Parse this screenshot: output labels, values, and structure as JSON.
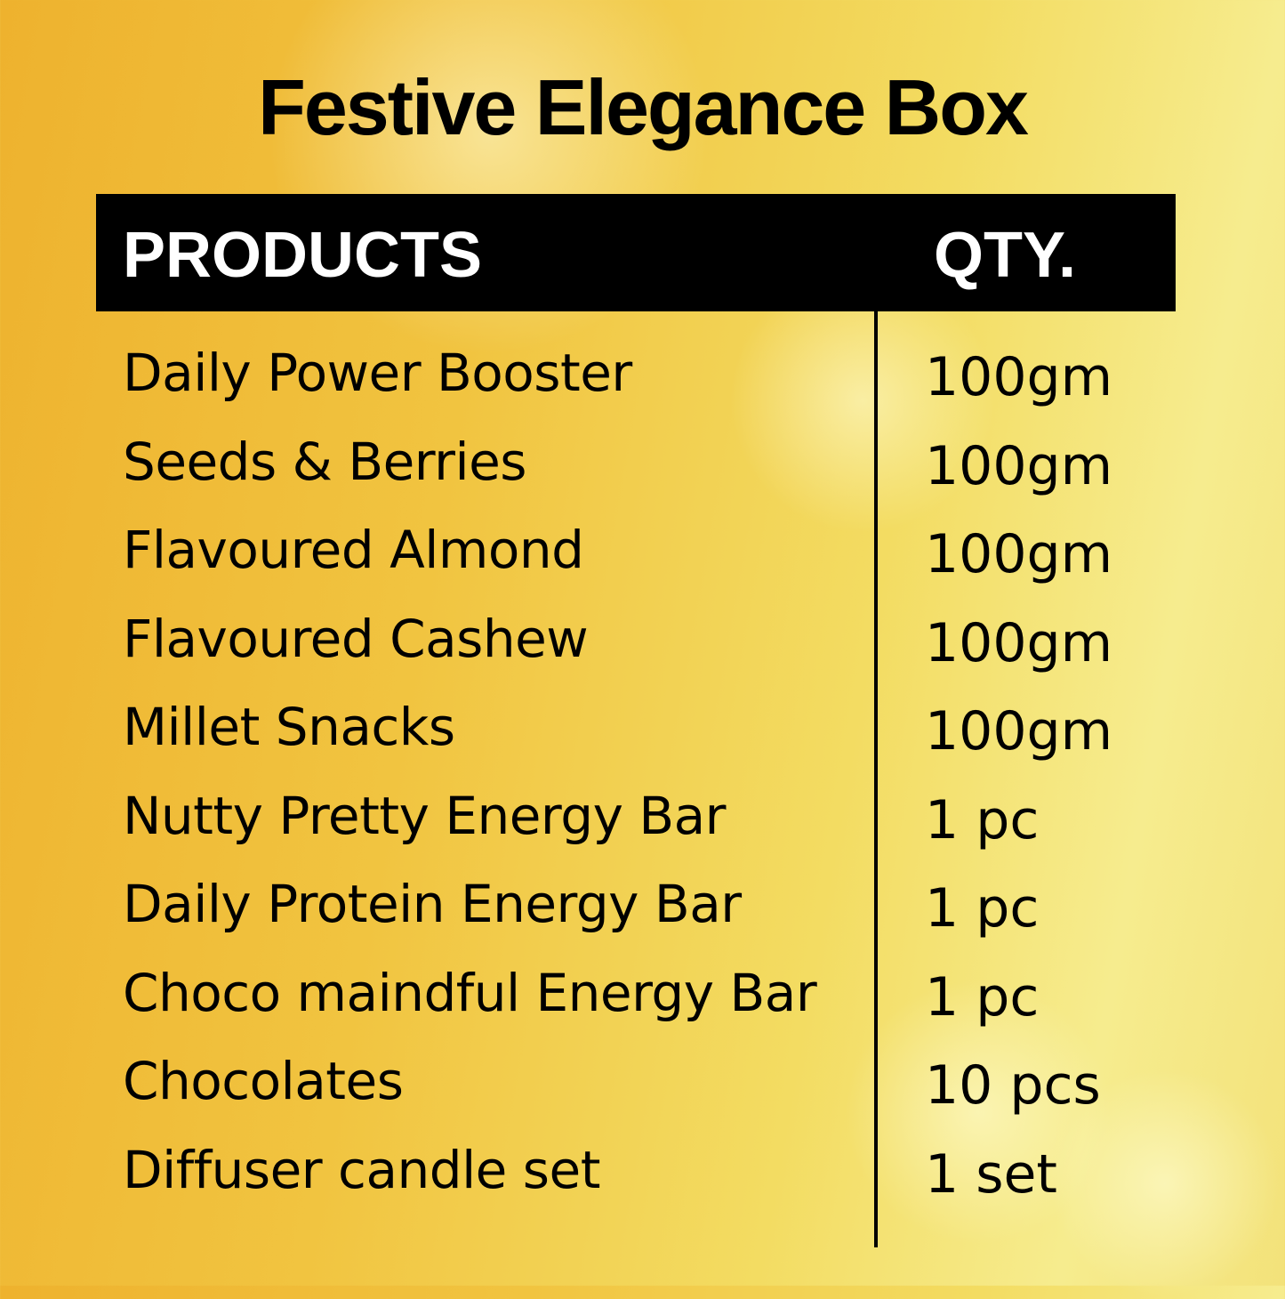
{
  "title": "Festive Elegance Box",
  "header": {
    "products": "PRODUCTS",
    "qty": "QTY."
  },
  "items": [
    {
      "product": "Daily Power Booster",
      "qty": "100gm"
    },
    {
      "product": "Seeds & Berries",
      "qty": "100gm"
    },
    {
      "product": "Flavoured Almond",
      "qty": "100gm"
    },
    {
      "product": "Flavoured Cashew",
      "qty": "100gm"
    },
    {
      "product": "Millet Snacks",
      "qty": "100gm"
    },
    {
      "product": "Nutty Pretty Energy Bar",
      "qty": "1 pc"
    },
    {
      "product": "Daily Protein Energy Bar",
      "qty": "1 pc"
    },
    {
      "product": "Choco maindful Energy Bar",
      "qty": "1 pc"
    },
    {
      "product": "Chocolates",
      "qty": "10 pcs"
    },
    {
      "product": "Diffuser candle set",
      "qty": "1 set"
    }
  ],
  "colors": {
    "background_left": "#eeb22e",
    "background_right": "#f6ec8e",
    "header_bg": "#000000",
    "header_text": "#ffffff"
  }
}
